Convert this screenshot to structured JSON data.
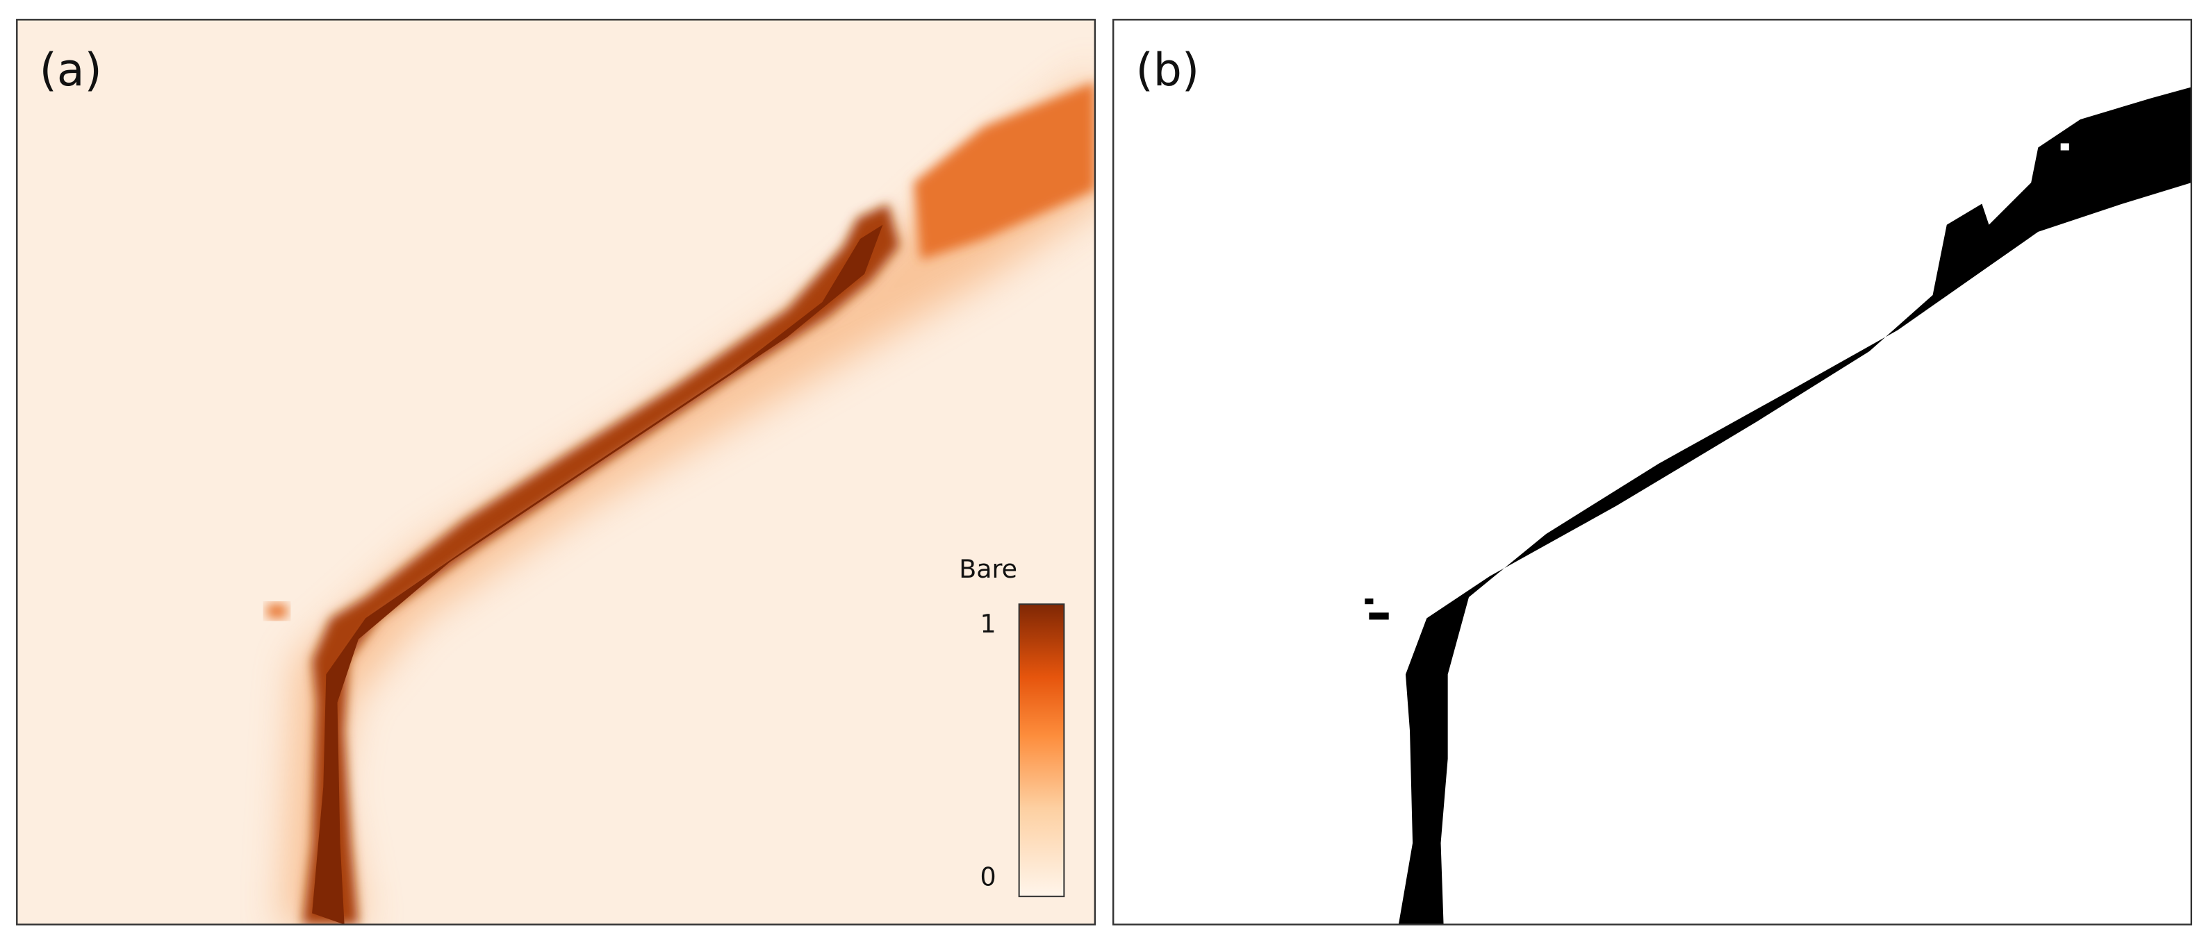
{
  "panels": [
    {
      "label": "(a)"
    },
    {
      "label": "(b)"
    }
  ],
  "colorbar": {
    "title": "Bare",
    "max_label": "1",
    "min_label": "0"
  }
}
